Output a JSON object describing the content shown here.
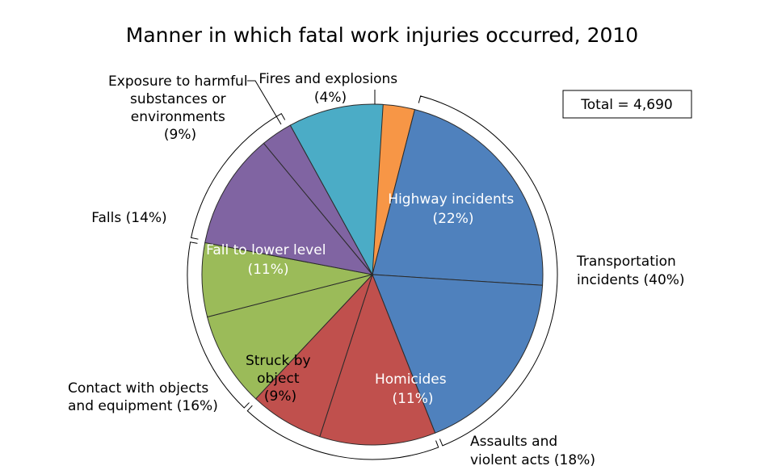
{
  "chart_data": {
    "type": "pie",
    "title": "Manner in which fatal work injuries occurred, 2010",
    "total_label": "Total = 4,690",
    "slices": [
      {
        "label": "Fires and explosions (4%)",
        "percent": 4,
        "color": "#f79646",
        "inside_label": false
      },
      {
        "label": "Highway incidents (22%)",
        "percent": 22,
        "color": "#4f81bd",
        "inside_label": true
      },
      {
        "label": "",
        "percent": 18,
        "color": "#4f81bd",
        "inside_label": false
      },
      {
        "label": "Homicides (11%)",
        "percent": 11,
        "color": "#c0504d",
        "inside_label": true
      },
      {
        "label": "",
        "percent": 7,
        "color": "#c0504d",
        "inside_label": false
      },
      {
        "label": "Struck by object (9%)",
        "percent": 9,
        "color": "#9bbb59",
        "inside_label": true
      },
      {
        "label": "",
        "percent": 7,
        "color": "#9bbb59",
        "inside_label": false
      },
      {
        "label": "Fall to lower level (11%)",
        "percent": 11,
        "color": "#8064a2",
        "inside_label": true
      },
      {
        "label": "",
        "percent": 3,
        "color": "#8064a2",
        "inside_label": false
      },
      {
        "label": "Exposure to harmful substances or environments (9%)",
        "percent": 9,
        "color": "#4bacc6",
        "inside_label": false
      }
    ],
    "groups": [
      {
        "label": "Transportation incidents (40%)",
        "percent": 40
      },
      {
        "label": "Assaults and violent acts (18%)",
        "percent": 18
      },
      {
        "label": "Contact with objects and equipment (16%)",
        "percent": 16
      },
      {
        "label": "Falls (14%)",
        "percent": 14
      }
    ]
  },
  "labels": {
    "title": "Manner in which fatal work injuries occurred, 2010",
    "total": "Total = 4,690",
    "fires_1": "Fires and explosions",
    "fires_2": "(4%)",
    "exposure_1": "Exposure to harmful",
    "exposure_2": "substances or",
    "exposure_3": "environments",
    "exposure_4": "(9%)",
    "falls": "Falls (14%)",
    "contact_1": "Contact with objects",
    "contact_2": "and equipment (16%)",
    "assaults_1": "Assaults and",
    "assaults_2": "violent acts (18%)",
    "transport_1": "Transportation",
    "transport_2": "incidents (40%)",
    "highway_1": "Highway incidents",
    "highway_2": "(22%)",
    "homicides_1": "Homicides",
    "homicides_2": "(11%)",
    "struck_1": "Struck by",
    "struck_2": "object",
    "struck_3": "(9%)",
    "fall_lower_1": "Fall to lower level",
    "fall_lower_2": "(11%)"
  }
}
